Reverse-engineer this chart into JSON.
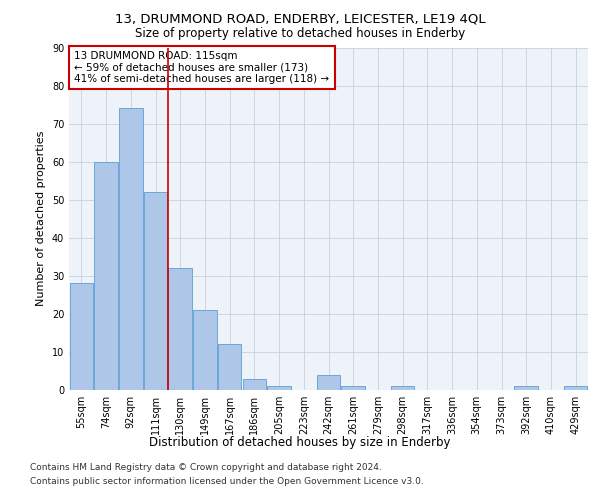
{
  "title_line1": "13, DRUMMOND ROAD, ENDERBY, LEICESTER, LE19 4QL",
  "title_line2": "Size of property relative to detached houses in Enderby",
  "xlabel": "Distribution of detached houses by size in Enderby",
  "ylabel": "Number of detached properties",
  "categories": [
    "55sqm",
    "74sqm",
    "92sqm",
    "111sqm",
    "130sqm",
    "149sqm",
    "167sqm",
    "186sqm",
    "205sqm",
    "223sqm",
    "242sqm",
    "261sqm",
    "279sqm",
    "298sqm",
    "317sqm",
    "336sqm",
    "354sqm",
    "373sqm",
    "392sqm",
    "410sqm",
    "429sqm"
  ],
  "values": [
    28,
    60,
    74,
    52,
    32,
    21,
    12,
    3,
    1,
    0,
    4,
    1,
    0,
    1,
    0,
    0,
    0,
    0,
    1,
    0,
    1
  ],
  "bar_color": "#aec6e8",
  "bar_edge_color": "#5a9fd4",
  "annotation_line1": "13 DRUMMOND ROAD: 115sqm",
  "annotation_line2": "← 59% of detached houses are smaller (173)",
  "annotation_line3": "41% of semi-detached houses are larger (118) →",
  "annotation_box_color": "#ffffff",
  "annotation_box_edge": "#cc0000",
  "vline_color": "#cc0000",
  "ylim": [
    0,
    90
  ],
  "yticks": [
    0,
    10,
    20,
    30,
    40,
    50,
    60,
    70,
    80,
    90
  ],
  "background_color": "#eef2f9",
  "footer_line1": "Contains HM Land Registry data © Crown copyright and database right 2024.",
  "footer_line2": "Contains public sector information licensed under the Open Government Licence v3.0.",
  "title_fontsize": 9.5,
  "subtitle_fontsize": 8.5,
  "xlabel_fontsize": 8.5,
  "ylabel_fontsize": 8,
  "tick_fontsize": 7,
  "footer_fontsize": 6.5,
  "annotation_fontsize": 7.5
}
